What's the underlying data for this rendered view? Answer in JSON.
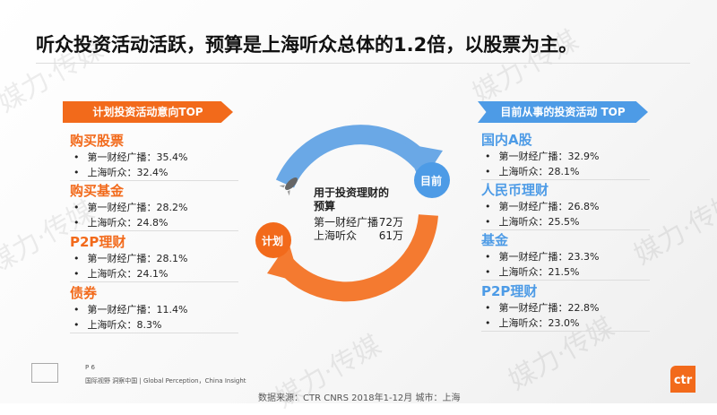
{
  "title": "听众投资活动活跃，预算是上海听众总体的1.2倍，以股票为主。",
  "left": {
    "banner": "计划投资活动意向TOP",
    "groups": [
      {
        "name": "购买股票",
        "a": "第一财经广播：35.4%",
        "b": "上海听众：32.4%"
      },
      {
        "name": "购买基金",
        "a": "第一财经广播：28.2%",
        "b": "上海听众：24.8%"
      },
      {
        "name": "P2P理财",
        "a": "第一财经广播：28.1%",
        "b": "上海听众：24.1%"
      },
      {
        "name": "债券",
        "a": "第一财经广播：11.4%",
        "b": "上海听众：8.3%"
      }
    ]
  },
  "right": {
    "banner": "目前从事的投资活动 TOP",
    "groups": [
      {
        "name": "国内A股",
        "a": "第一财经广播：32.9%",
        "b": "上海听众：28.1%"
      },
      {
        "name": "人民币理财",
        "a": "第一财经广播：26.8%",
        "b": "上海听众：25.5%"
      },
      {
        "name": "基金",
        "a": "第一财经广播：23.3%",
        "b": "上海听众：21.5%"
      },
      {
        "name": "P2P理财",
        "a": "第一财经广播：22.8%",
        "b": "上海听众：23.0%"
      }
    ]
  },
  "center": {
    "heading1": "用于投资理财的",
    "heading2": "预算",
    "row1_label": "第一财经广播",
    "row1_value": "72万",
    "row2_label": "上海听众",
    "row2_value": "61万",
    "plan": "计划",
    "current": "目前",
    "icon": "rocket-icon"
  },
  "footer": {
    "page": "P 6",
    "slogan": "国际视野 洞察中国 | Global Perception，China Insight",
    "source": "数据来源：CTR CNRS 2018年1-12月  城市：上海",
    "logo": "ctr",
    "watermark": "媒力·传媒"
  },
  "colors": {
    "orange": "#f26a1b",
    "blue": "#4d9be6"
  }
}
